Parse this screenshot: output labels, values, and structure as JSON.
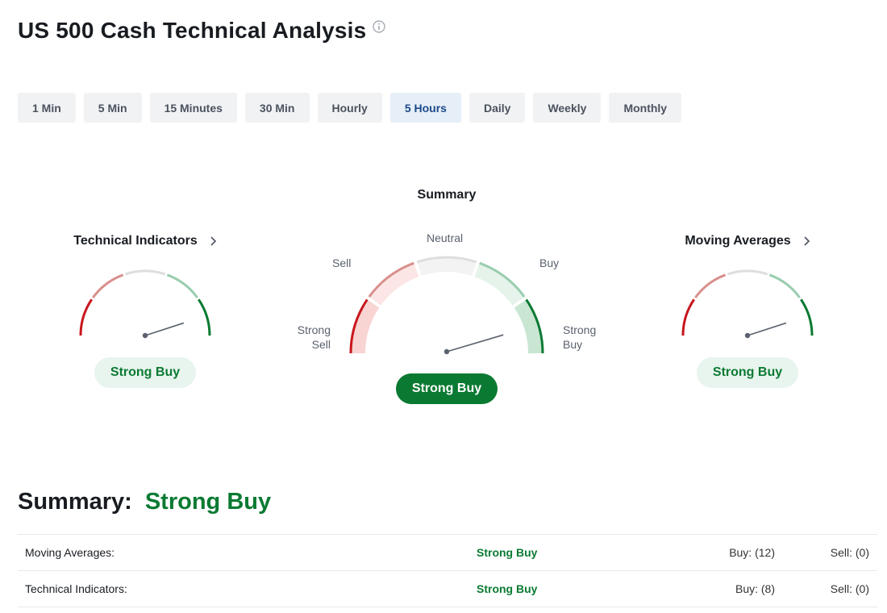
{
  "page": {
    "title": "US 500 Cash Technical Analysis",
    "info_icon": "info-circle-icon"
  },
  "timeframes": [
    {
      "label": "1 Min",
      "active": false
    },
    {
      "label": "5 Min",
      "active": false
    },
    {
      "label": "15 Minutes",
      "active": false
    },
    {
      "label": "30 Min",
      "active": false
    },
    {
      "label": "Hourly",
      "active": false
    },
    {
      "label": "5 Hours",
      "active": true
    },
    {
      "label": "Daily",
      "active": false
    },
    {
      "label": "Weekly",
      "active": false
    },
    {
      "label": "Monthly",
      "active": false
    }
  ],
  "gauges": {
    "technical_indicators": {
      "title": "Technical Indicators",
      "verdict": "Strong Buy",
      "needle_value": 0.9
    },
    "summary": {
      "title": "Summary",
      "verdict": "Strong Buy",
      "needle_value": 0.9,
      "labels": {
        "strong_sell": [
          "Strong",
          "Sell"
        ],
        "sell": "Sell",
        "neutral": "Neutral",
        "buy": "Buy",
        "strong_buy": [
          "Strong",
          "Buy"
        ]
      }
    },
    "moving_averages": {
      "title": "Moving Averages",
      "verdict": "Strong Buy",
      "needle_value": 0.9
    }
  },
  "colors": {
    "strong_sell": "#c8161d",
    "sell": "#d9908d",
    "neutral": "#dedede",
    "buy": "#9acdaf",
    "strong_buy": "#0a7a32"
  },
  "summary": {
    "label": "Summary:",
    "verdict": "Strong Buy",
    "rows": [
      {
        "name": "Moving Averages:",
        "verdict": "Strong Buy",
        "buy": "Buy: (12)",
        "sell": "Sell: (0)"
      },
      {
        "name": "Technical Indicators:",
        "verdict": "Strong Buy",
        "buy": "Buy: (8)",
        "sell": "Sell: (0)"
      }
    ]
  }
}
